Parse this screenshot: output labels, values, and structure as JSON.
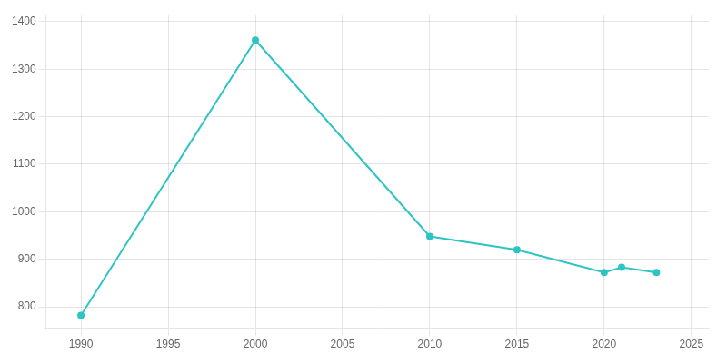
{
  "chart_data": {
    "type": "line",
    "x": [
      1990,
      2000,
      2010,
      2015,
      2020,
      2021,
      2023
    ],
    "values": [
      782,
      1361,
      948,
      920,
      872,
      883,
      872
    ],
    "color": "#2EC4C4",
    "marker": "circle",
    "xlim": [
      1988,
      2026
    ],
    "ylim": [
      755,
      1415
    ],
    "xticks": [
      1990,
      1995,
      2000,
      2005,
      2010,
      2015,
      2020,
      2025
    ],
    "yticks": [
      800,
      900,
      1000,
      1100,
      1200,
      1300,
      1400
    ],
    "grid": true
  }
}
